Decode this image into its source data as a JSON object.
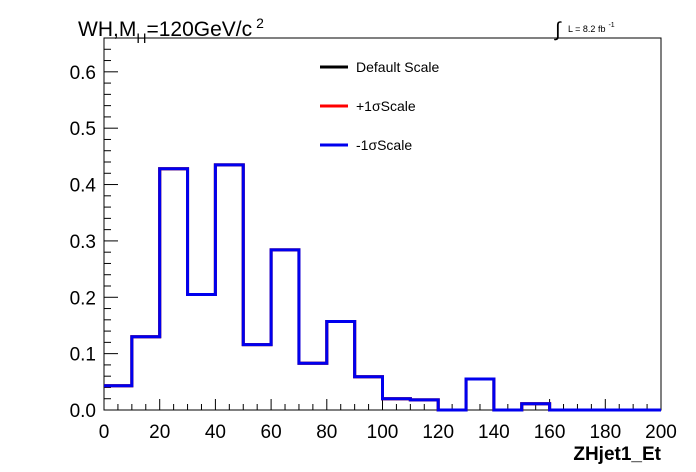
{
  "chart_data": {
    "type": "line",
    "title_main": "WH,M",
    "title_sub": "H",
    "title_rest": "=120GeV/c",
    "title_sup": "2",
    "lumi_text": "L = 8.2 fb",
    "lumi_sup": "-1",
    "xlabel": "ZHjet1_Et",
    "ylabel": "",
    "xlim": [
      0,
      200
    ],
    "ylim": [
      0,
      0.66
    ],
    "x_ticks": [
      0,
      20,
      40,
      60,
      80,
      100,
      120,
      140,
      160,
      180,
      200
    ],
    "y_ticks": [
      0.0,
      0.1,
      0.2,
      0.3,
      0.4,
      0.5,
      0.6
    ],
    "y_tick_labels": [
      "0.0",
      "0.1",
      "0.2",
      "0.3",
      "0.4",
      "0.5",
      "0.6"
    ],
    "bin_edges": [
      0,
      10,
      20,
      30,
      40,
      50,
      60,
      70,
      80,
      90,
      100,
      110,
      120,
      130,
      140,
      150,
      160,
      170,
      180,
      190,
      200
    ],
    "series": [
      {
        "name": "Default Scale",
        "color": "#000000",
        "values": [
          0.043,
          0.13,
          0.428,
          0.205,
          0.435,
          0.116,
          0.284,
          0.083,
          0.157,
          0.059,
          0.02,
          0.018,
          0.0,
          0.055,
          0.0,
          0.011,
          0.0,
          0.0,
          0.0,
          0.0
        ]
      },
      {
        "name": "+1σScale",
        "color": "#ff0000",
        "values": [
          0.043,
          0.13,
          0.428,
          0.205,
          0.435,
          0.116,
          0.284,
          0.083,
          0.157,
          0.059,
          0.02,
          0.018,
          0.0,
          0.055,
          0.0,
          0.011,
          0.0,
          0.0,
          0.0,
          0.0
        ]
      },
      {
        "name": "-1σScale",
        "color": "#0000ee",
        "values": [
          0.043,
          0.13,
          0.428,
          0.205,
          0.435,
          0.116,
          0.284,
          0.083,
          0.157,
          0.059,
          0.02,
          0.018,
          0.0,
          0.055,
          0.0,
          0.011,
          0.0,
          0.0,
          0.0,
          0.0
        ]
      }
    ],
    "legend_position": "top-center",
    "grid": false
  }
}
